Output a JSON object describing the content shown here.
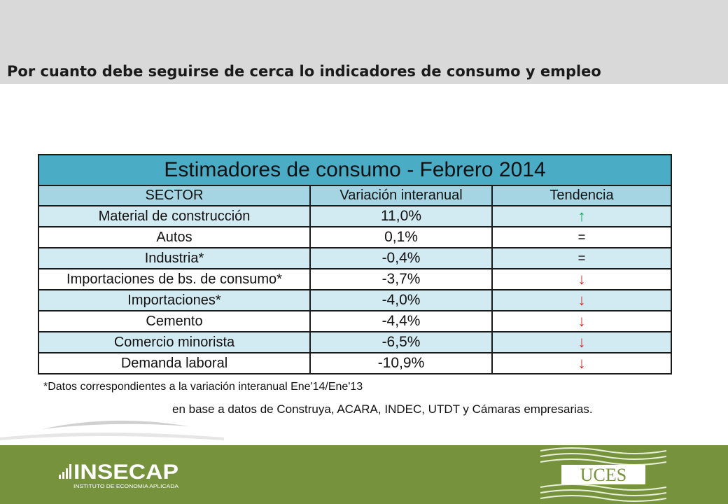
{
  "slide_title": "Por cuanto debe seguirse de cerca lo indicadores de consumo y empleo",
  "table": {
    "caption": "Estimadores de consumo - Febrero 2014",
    "headers": [
      "SECTOR",
      "Variación interanual",
      "Tendencia"
    ],
    "rows": [
      {
        "sector": "Material de construcción",
        "value": "11,0%",
        "trend": "↑",
        "trend_name": "up-arrow-icon"
      },
      {
        "sector": "Autos",
        "value": "0,1%",
        "trend": "=",
        "trend_name": "equal-icon"
      },
      {
        "sector": "Industria*",
        "value": "-0,4%",
        "trend": "=",
        "trend_name": "equal-icon"
      },
      {
        "sector": "Importaciones de bs. de consumo*",
        "value": "-3,7%",
        "trend": "↓",
        "trend_name": "down-arrow-icon"
      },
      {
        "sector": "Importaciones*",
        "value": "-4,0%",
        "trend": "↓",
        "trend_name": "down-arrow-icon"
      },
      {
        "sector": "Cemento",
        "value": "-4,4%",
        "trend": "↓",
        "trend_name": "down-arrow-icon"
      },
      {
        "sector": "Comercio minorista",
        "value": "-6,5%",
        "trend": "↓",
        "trend_name": "down-arrow-icon"
      },
      {
        "sector": "Demanda laboral",
        "value": "-10,9%",
        "trend": "↓",
        "trend_name": "down-arrow-icon"
      }
    ]
  },
  "footnote": "*Datos correspondientes a la variación interanual Ene'14/Ene'13",
  "source": "en base a datos de Construya, ACARA, INDEC, UTDT y Cámaras empresarias.",
  "logos": {
    "insecap_name": "INSECAP",
    "insecap_tagline": "INSTITUTO DE ECONOMIA APLICADA",
    "uces_name": "UCES"
  },
  "colors": {
    "header_band": "#4bacc6",
    "header_row": "#a5d5e2",
    "row_band": "#d2eaf1",
    "trend_up": "#00a651",
    "trend_down": "#e31a1a",
    "footer": "#76923c"
  }
}
